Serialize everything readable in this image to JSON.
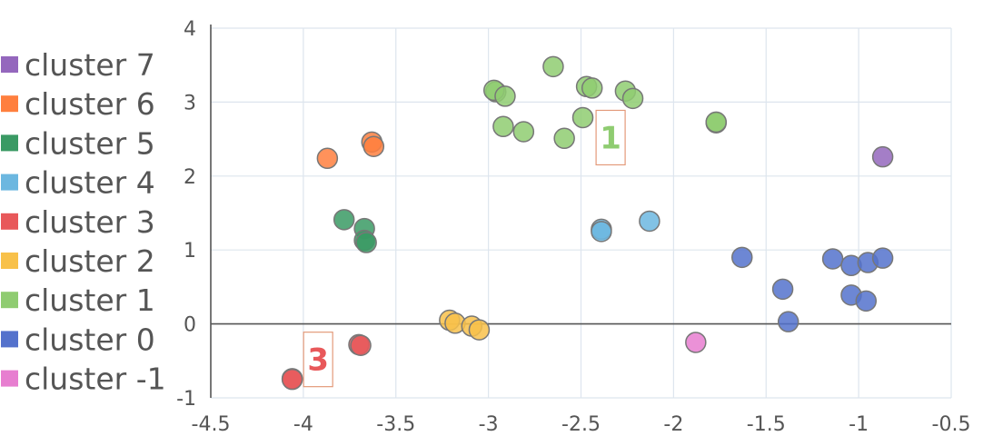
{
  "chart_data": {
    "type": "scatter",
    "title": "",
    "xlabel": "",
    "ylabel": "",
    "xlim": [
      -4.5,
      -0.5
    ],
    "ylim": [
      -1,
      4
    ],
    "xticks": [
      -4.5,
      -4,
      -3.5,
      -3,
      -2.5,
      -2,
      -1.5,
      -1,
      -0.5
    ],
    "yticks": [
      -1,
      0,
      1,
      2,
      3,
      4
    ],
    "xtick_labels": [
      "-4.5",
      "-4",
      "-3.5",
      "-3",
      "-2.5",
      "-2",
      "-1.5",
      "-1",
      "-0.5"
    ],
    "ytick_labels": [
      "-1",
      "0",
      "1",
      "2",
      "3",
      "4"
    ],
    "grid": true,
    "legend_position": "left",
    "series": [
      {
        "name": "cluster 7",
        "color": "#9467bd",
        "points": [
          [
            -0.87,
            2.26
          ]
        ]
      },
      {
        "name": "cluster 6",
        "color": "#ff7f3e",
        "points": [
          [
            -3.87,
            2.24
          ],
          [
            -3.63,
            2.46
          ],
          [
            -3.62,
            2.4
          ]
        ]
      },
      {
        "name": "cluster 5",
        "color": "#3a9a64",
        "points": [
          [
            -3.78,
            1.41
          ],
          [
            -3.67,
            1.29
          ],
          [
            -3.67,
            1.13
          ],
          [
            -3.66,
            1.1
          ]
        ]
      },
      {
        "name": "cluster 4",
        "color": "#6cb7e0",
        "points": [
          [
            -2.39,
            1.28
          ],
          [
            -2.39,
            1.25
          ],
          [
            -2.13,
            1.39
          ]
        ]
      },
      {
        "name": "cluster 3",
        "color": "#e8585a",
        "points": [
          [
            -3.7,
            -0.28
          ],
          [
            -3.69,
            -0.29
          ],
          [
            -4.06,
            -0.74
          ],
          [
            -4.06,
            -0.75
          ]
        ]
      },
      {
        "name": "cluster 2",
        "color": "#f8c14a",
        "points": [
          [
            -3.21,
            0.05
          ],
          [
            -3.18,
            0.01
          ],
          [
            -3.09,
            -0.03
          ],
          [
            -3.05,
            -0.08
          ]
        ]
      },
      {
        "name": "cluster 1",
        "color": "#8fcc71",
        "points": [
          [
            -2.96,
            3.14
          ],
          [
            -2.97,
            3.16
          ],
          [
            -2.91,
            3.08
          ],
          [
            -2.65,
            3.48
          ],
          [
            -2.47,
            3.21
          ],
          [
            -2.44,
            3.19
          ],
          [
            -2.26,
            3.15
          ],
          [
            -2.22,
            3.05
          ],
          [
            -2.92,
            2.67
          ],
          [
            -2.81,
            2.6
          ],
          [
            -2.59,
            2.51
          ],
          [
            -2.49,
            2.79
          ],
          [
            -1.77,
            2.72
          ],
          [
            -1.77,
            2.73
          ]
        ]
      },
      {
        "name": "cluster 0",
        "color": "#5472cc",
        "points": [
          [
            -1.63,
            0.9
          ],
          [
            -1.41,
            0.47
          ],
          [
            -1.38,
            0.03
          ],
          [
            -1.14,
            0.88
          ],
          [
            -1.04,
            0.79
          ],
          [
            -0.95,
            0.83
          ],
          [
            -0.87,
            0.89
          ],
          [
            -1.04,
            0.39
          ],
          [
            -0.96,
            0.31
          ]
        ]
      },
      {
        "name": "cluster -1",
        "color": "#e77ed0",
        "points": [
          [
            -1.88,
            -0.25
          ]
        ]
      }
    ],
    "annotations": [
      {
        "text": "1",
        "x": -2.34,
        "y": 2.52,
        "color": "#8fcc71"
      },
      {
        "text": "3",
        "x": -3.92,
        "y": -0.48,
        "color": "#e8585a"
      }
    ]
  }
}
